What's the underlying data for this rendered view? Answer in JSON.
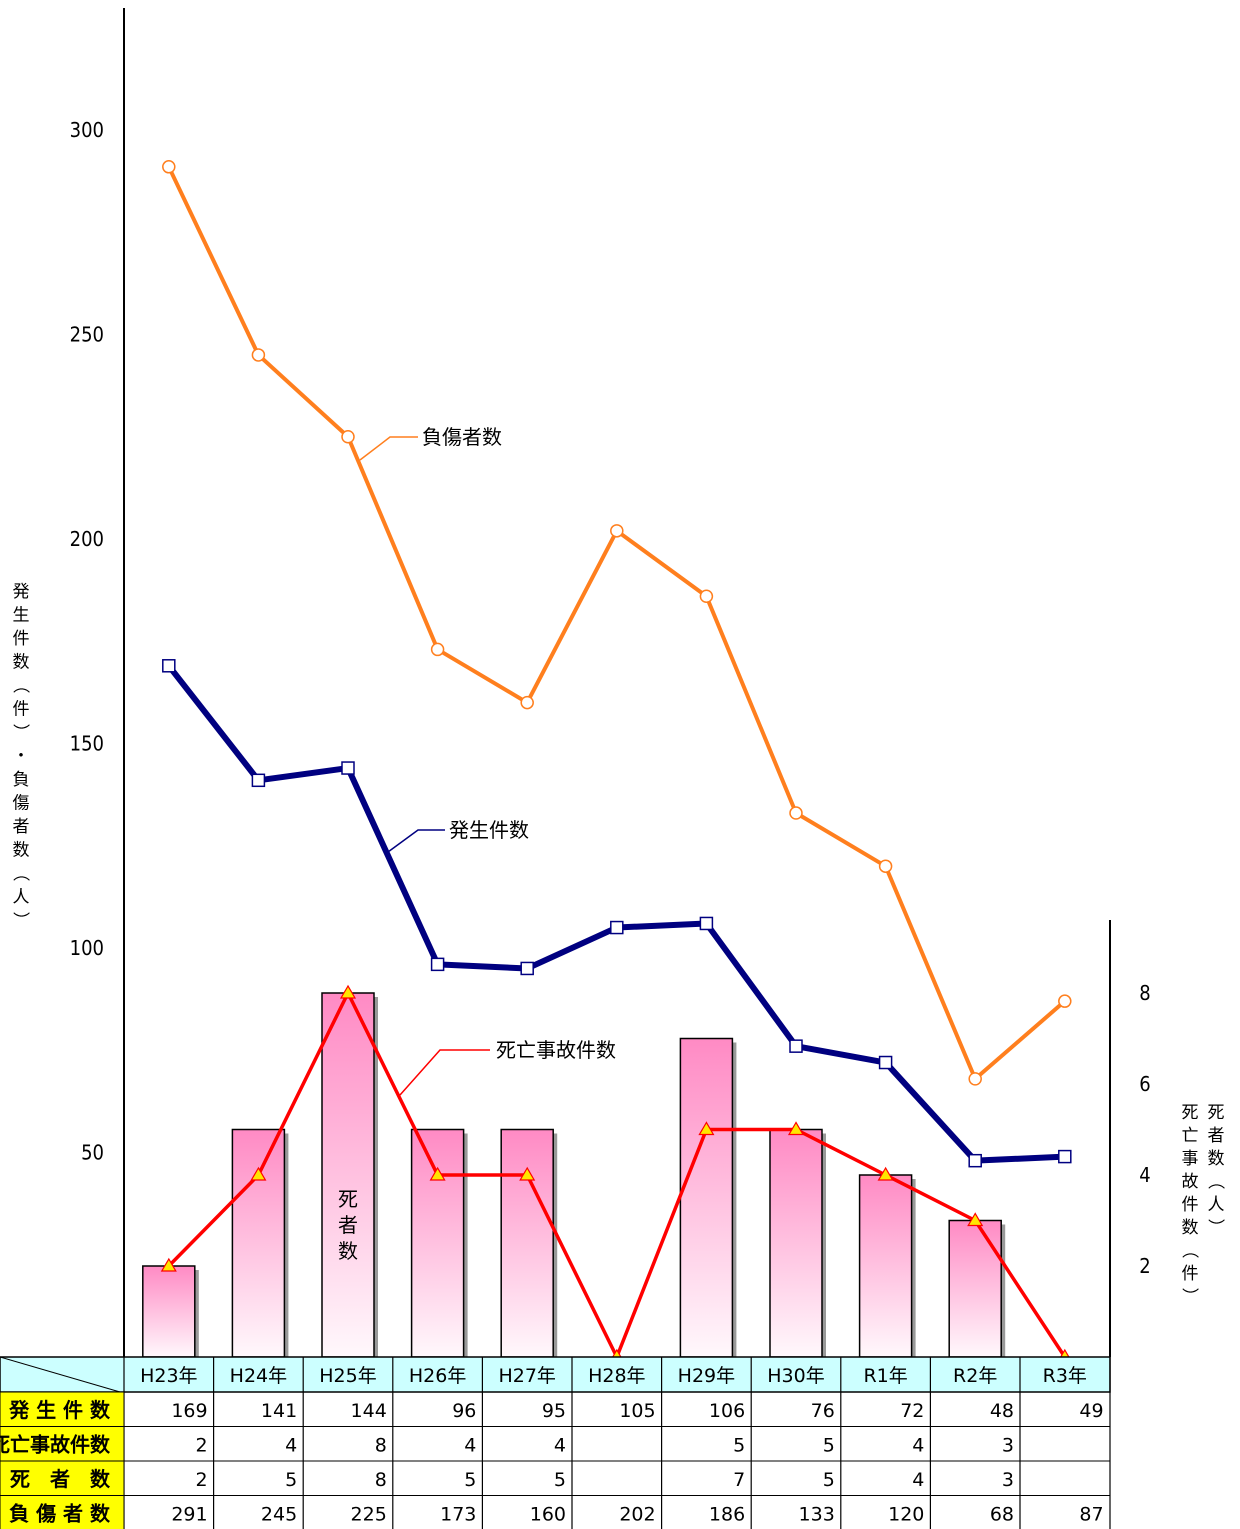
{
  "chart_data": {
    "type": "bar+line",
    "categories": [
      "H23年",
      "H24年",
      "H25年",
      "H26年",
      "H27年",
      "H28年",
      "H29年",
      "H30年",
      "R1年",
      "R2年",
      "R3年"
    ],
    "series": [
      {
        "name": "発生件数",
        "type": "line",
        "axis": "left",
        "color": "#000080",
        "values": [
          169,
          141,
          144,
          96,
          95,
          105,
          106,
          76,
          72,
          48,
          49
        ]
      },
      {
        "name": "負傷者数",
        "type": "line",
        "axis": "left",
        "color": "#FF7F1E",
        "values": [
          291,
          245,
          225,
          173,
          160,
          202,
          186,
          133,
          120,
          68,
          87
        ]
      },
      {
        "name": "死亡事故件数",
        "type": "line",
        "axis": "right",
        "color": "#FF0000",
        "values": [
          2,
          4,
          8,
          4,
          4,
          0,
          5,
          5,
          4,
          3,
          0
        ]
      },
      {
        "name": "死者数",
        "type": "bar",
        "axis": "right",
        "values": [
          2,
          5,
          8,
          5,
          5,
          0,
          7,
          5,
          4,
          3,
          0
        ]
      }
    ],
    "ylabel": "発生件数（件）・負傷者数（人）",
    "y2label_a": "死亡事故件数（件）",
    "y2label_b": "死者数（人）",
    "y_ticks": [
      50,
      100,
      150,
      200,
      250,
      300
    ],
    "y2_ticks": [
      2,
      4,
      6,
      8
    ],
    "ylim": [
      0,
      330
    ],
    "y2lim": [
      0,
      10
    ],
    "bar_label": "死者数",
    "table": {
      "rows": [
        {
          "label": "発 生 件 数",
          "values": [
            "169",
            "141",
            "144",
            "96",
            "95",
            "105",
            "106",
            "76",
            "72",
            "48",
            "49"
          ]
        },
        {
          "label": "死亡事故件数",
          "values": [
            "2",
            "4",
            "8",
            "4",
            "4",
            "",
            "5",
            "5",
            "4",
            "3",
            ""
          ]
        },
        {
          "label": "死　者　数",
          "values": [
            "2",
            "5",
            "8",
            "5",
            "5",
            "",
            "7",
            "5",
            "4",
            "3",
            ""
          ]
        },
        {
          "label": "負 傷 者 数",
          "values": [
            "291",
            "245",
            "225",
            "173",
            "160",
            "202",
            "186",
            "133",
            "120",
            "68",
            "87"
          ]
        }
      ]
    }
  }
}
